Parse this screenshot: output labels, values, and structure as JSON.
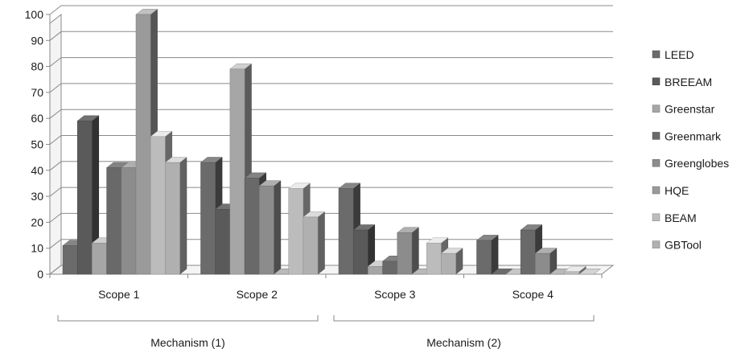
{
  "chart_data": {
    "type": "bar",
    "categories": [
      "Scope 1",
      "Scope 2",
      "Scope 3",
      "Scope 4"
    ],
    "groups": [
      {
        "label": "Mechanism (1)",
        "categories": [
          "Scope 1",
          "Scope 2"
        ]
      },
      {
        "label": "Mechanism (2)",
        "categories": [
          "Scope 3",
          "Scope 4"
        ]
      }
    ],
    "series": [
      {
        "name": "LEED",
        "values": [
          11,
          43,
          33,
          13
        ],
        "color": "#6b6b6b"
      },
      {
        "name": "BREEAM",
        "values": [
          59,
          25,
          17,
          0
        ],
        "color": "#5a5a5a"
      },
      {
        "name": "Greenstar",
        "values": [
          12,
          79,
          3,
          0
        ],
        "color": "#a6a6a6"
      },
      {
        "name": "Greenmark",
        "values": [
          41,
          37,
          5,
          17
        ],
        "color": "#696969"
      },
      {
        "name": "Greenglobes",
        "values": [
          41,
          34,
          16,
          8
        ],
        "color": "#8c8c8c"
      },
      {
        "name": "HQE",
        "values": [
          100,
          0,
          0,
          0
        ],
        "color": "#9a9a9a"
      },
      {
        "name": "BEAM",
        "values": [
          53,
          33,
          12,
          1
        ],
        "color": "#bcbcbc"
      },
      {
        "name": "GBTool",
        "values": [
          43,
          22,
          8,
          0
        ],
        "color": "#b0b0b0"
      }
    ],
    "ylim": [
      0,
      100
    ],
    "yticks": [
      0,
      10,
      20,
      30,
      40,
      50,
      60,
      70,
      80,
      90,
      100
    ],
    "grid": true,
    "legend_position": "right",
    "style": "3d-clustered-column"
  }
}
